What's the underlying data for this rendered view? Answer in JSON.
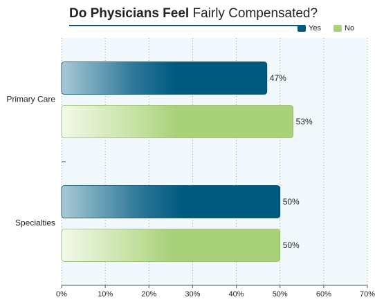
{
  "chart_data": {
    "type": "bar",
    "orientation": "horizontal",
    "title_bold": "Do Physicians Feel",
    "title_regular": "Fairly Compensated?",
    "categories": [
      "Primary Care",
      "Specialties"
    ],
    "series": [
      {
        "name": "Yes",
        "values": [
          47,
          50
        ],
        "labels": [
          "47%",
          "50%"
        ],
        "color": "#005a80"
      },
      {
        "name": "No",
        "values": [
          53,
          50
        ],
        "labels": [
          "53%",
          "50%"
        ],
        "color": "#a8d17a"
      }
    ],
    "xlim": [
      0,
      70
    ],
    "xticks": [
      {
        "value": 0,
        "label": "0%"
      },
      {
        "value": 10,
        "label": "10%"
      },
      {
        "value": 20,
        "label": "20%"
      },
      {
        "value": 30,
        "label": "30%"
      },
      {
        "value": 40,
        "label": "40%"
      },
      {
        "value": 50,
        "label": "50%"
      },
      {
        "value": 60,
        "label": "60%"
      },
      {
        "value": 70,
        "label": "70%"
      }
    ],
    "grid": true,
    "legend_position": "top-right",
    "background_color": "#f1f9fd"
  }
}
